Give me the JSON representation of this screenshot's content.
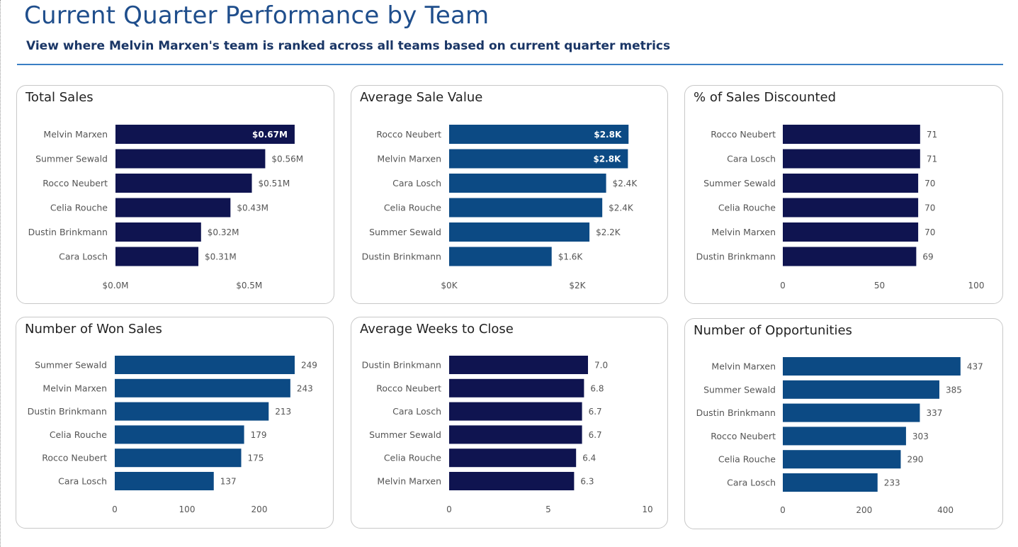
{
  "page": {
    "title": "Current Quarter Performance by Team",
    "subtitle": "View where Melvin Marxen's team is ranked across all teams based on current quarter metrics"
  },
  "colors": {
    "navy": "#0f1450",
    "blue": "#0c4a84",
    "title": "#1f4e8c",
    "divider": "#3a7fc4"
  },
  "chart_data": [
    {
      "id": "total-sales",
      "type": "bar",
      "orientation": "horizontal",
      "title": "Total Sales",
      "color": "#0f1450",
      "categories": [
        "Melvin Marxen",
        "Summer Sewald",
        "Rocco Neubert",
        "Celia Rouche",
        "Dustin Brinkmann",
        "Cara Losch"
      ],
      "values": [
        0.67,
        0.56,
        0.51,
        0.43,
        0.32,
        0.31
      ],
      "value_labels": [
        "$0.67M",
        "$0.56M",
        "$0.51M",
        "$0.43M",
        "$0.32M",
        "$0.31M"
      ],
      "labels_inside": [
        true,
        false,
        false,
        false,
        false,
        false
      ],
      "xlim": [
        0,
        0.8
      ],
      "ticks": [
        0,
        0.5
      ],
      "tick_labels": [
        "$0.0M",
        "$0.5M"
      ],
      "grid": false
    },
    {
      "id": "average-sale-value",
      "type": "bar",
      "orientation": "horizontal",
      "title": "Average Sale Value",
      "color": "#0c4a84",
      "categories": [
        "Rocco Neubert",
        "Melvin Marxen",
        "Cara Losch",
        "Celia Rouche",
        "Summer Sewald",
        "Dustin Brinkmann"
      ],
      "values": [
        2.8,
        2.79,
        2.45,
        2.39,
        2.19,
        1.6
      ],
      "value_labels": [
        "$2.8K",
        "$2.8K",
        "$2.4K",
        "$2.4K",
        "$2.2K",
        "$1.6K"
      ],
      "labels_inside": [
        true,
        true,
        false,
        false,
        false,
        false
      ],
      "xlim": [
        0,
        3.35
      ],
      "ticks": [
        0,
        2
      ],
      "tick_labels": [
        "$0K",
        "$2K"
      ],
      "grid": false
    },
    {
      "id": "pct-sales-discounted",
      "type": "bar",
      "orientation": "horizontal",
      "title": "% of Sales Discounted",
      "color": "#0f1450",
      "categories": [
        "Rocco Neubert",
        "Cara Losch",
        "Summer Sewald",
        "Celia Rouche",
        "Melvin Marxen",
        "Dustin Brinkmann"
      ],
      "values": [
        71,
        71,
        70,
        70,
        70,
        69
      ],
      "value_labels": [
        "71",
        "71",
        "70",
        "70",
        "70",
        "69"
      ],
      "labels_inside": [
        false,
        false,
        false,
        false,
        false,
        false
      ],
      "xlim": [
        0,
        100
      ],
      "ticks": [
        0,
        50,
        100
      ],
      "tick_labels": [
        "0",
        "50",
        "100"
      ],
      "grid": false
    },
    {
      "id": "number-won-sales",
      "type": "bar",
      "orientation": "horizontal",
      "title": "Number of Won Sales",
      "color": "#0c4a84",
      "categories": [
        "Summer Sewald",
        "Melvin Marxen",
        "Dustin Brinkmann",
        "Celia Rouche",
        "Rocco Neubert",
        "Cara Losch"
      ],
      "values": [
        249,
        243,
        213,
        179,
        175,
        137
      ],
      "value_labels": [
        "249",
        "243",
        "213",
        "179",
        "175",
        "137"
      ],
      "labels_inside": [
        false,
        false,
        false,
        false,
        false,
        false
      ],
      "xlim": [
        0,
        300
      ],
      "ticks": [
        0,
        100,
        200
      ],
      "tick_labels": [
        "0",
        "100",
        "200"
      ],
      "grid": false
    },
    {
      "id": "average-weeks-to-close",
      "type": "bar",
      "orientation": "horizontal",
      "title": "Average Weeks to Close",
      "color": "#0f1450",
      "categories": [
        "Dustin Brinkmann",
        "Rocco Neubert",
        "Cara Losch",
        "Summer Sewald",
        "Celia Rouche",
        "Melvin Marxen"
      ],
      "values": [
        7.0,
        6.8,
        6.7,
        6.7,
        6.4,
        6.3
      ],
      "value_labels": [
        "7.0",
        "6.8",
        "6.7",
        "6.7",
        "6.4",
        "6.3"
      ],
      "labels_inside": [
        false,
        false,
        false,
        false,
        false,
        false
      ],
      "xlim": [
        0,
        10
      ],
      "ticks": [
        0,
        5,
        10
      ],
      "tick_labels": [
        "0",
        "5",
        "10"
      ],
      "grid": false
    },
    {
      "id": "number-opportunities",
      "type": "bar",
      "orientation": "horizontal",
      "title": "Number of Opportunities",
      "color": "#0c4a84",
      "categories": [
        "Melvin Marxen",
        "Summer Sewald",
        "Dustin Brinkmann",
        "Rocco Neubert",
        "Celia Rouche",
        "Cara Losch"
      ],
      "values": [
        437,
        385,
        337,
        303,
        290,
        233
      ],
      "value_labels": [
        "437",
        "385",
        "337",
        "303",
        "290",
        "233"
      ],
      "labels_inside": [
        false,
        false,
        false,
        false,
        false,
        false
      ],
      "xlim": [
        0,
        500
      ],
      "ticks": [
        0,
        200,
        400
      ],
      "tick_labels": [
        "0",
        "200",
        "400"
      ],
      "grid": false
    }
  ]
}
